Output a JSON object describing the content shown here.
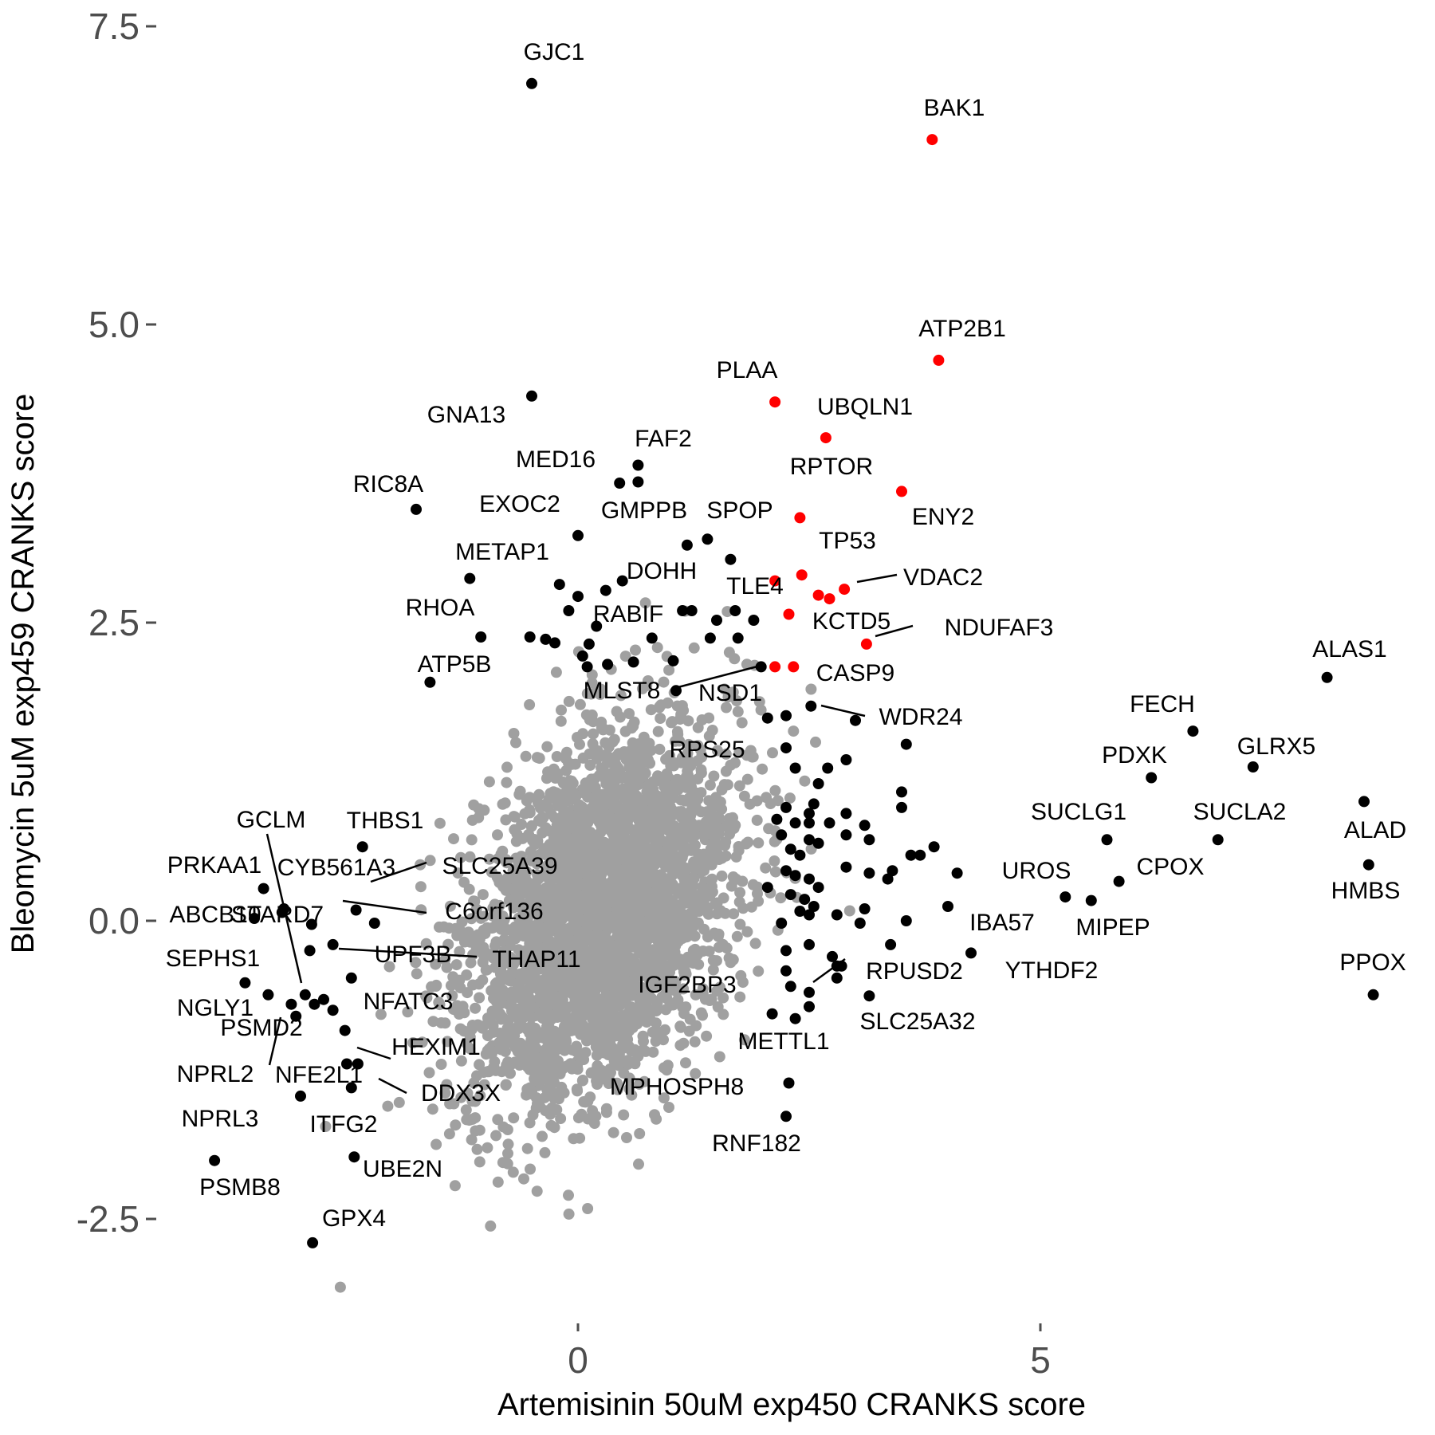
{
  "chart_data": {
    "type": "scatter",
    "title": "",
    "xlabel": "Artemisinin 50uM exp450 CRANKS score",
    "ylabel": "Bleomycin 5uM exp459 CRANKS score",
    "xlim": [
      -4.5,
      9.3
    ],
    "ylim": [
      -3.35,
      7.75
    ],
    "x_ticks": [
      0,
      5
    ],
    "x_tick_labels": [
      "0",
      "5"
    ],
    "y_ticks": [
      -2.5,
      0,
      2.5,
      5,
      7.5
    ],
    "y_tick_labels": [
      "-2.5",
      "0.0",
      "2.5",
      "5.0",
      "7.5"
    ],
    "grid": false,
    "legend": "none",
    "colors": {
      "background": "#ffffff",
      "bulk": "#a0a0a0",
      "labeled": "#000000",
      "highlight": "#ff0000"
    },
    "series": [
      {
        "color": "#000000",
        "points": [
          {
            "label": "GJC1",
            "x": -0.5,
            "y": 7.02
          },
          {
            "label": "GNA13",
            "x": -0.5,
            "y": 4.4
          },
          {
            "label": "RIC8A",
            "x": -1.75,
            "y": 3.45
          },
          {
            "label": "MED16",
            "x": 0.45,
            "y": 3.67
          },
          {
            "label": "FAF2",
            "x": 0.65,
            "y": 3.82
          },
          {
            "label": "",
            "x": 0.65,
            "y": 3.68
          },
          {
            "label": "EXOC2",
            "x": 0.0,
            "y": 3.23
          },
          {
            "label": "GMPPB",
            "x": 1.18,
            "y": 3.15
          },
          {
            "label": "SPOP",
            "x": 1.4,
            "y": 3.2
          },
          {
            "label": "",
            "x": 1.65,
            "y": 3.03
          },
          {
            "label": "METAP1",
            "x": -1.17,
            "y": 2.87
          },
          {
            "label": "DOHH",
            "x": 0.48,
            "y": 2.85
          },
          {
            "label": "",
            "x": -0.2,
            "y": 2.82
          },
          {
            "label": "",
            "x": 0.0,
            "y": 2.72
          },
          {
            "label": "",
            "x": 0.3,
            "y": 2.77
          },
          {
            "label": "",
            "x": -0.1,
            "y": 2.6
          },
          {
            "label": "RABIF",
            "x": 1.13,
            "y": 2.6
          },
          {
            "label": "",
            "x": 1.23,
            "y": 2.6
          },
          {
            "label": "",
            "x": 1.7,
            "y": 2.6
          },
          {
            "label": "",
            "x": 1.9,
            "y": 2.52
          },
          {
            "label": "",
            "x": 1.5,
            "y": 2.52
          },
          {
            "label": "",
            "x": 0.2,
            "y": 2.47
          },
          {
            "label": "",
            "x": 1.43,
            "y": 2.37
          },
          {
            "label": "",
            "x": 1.73,
            "y": 2.37
          },
          {
            "label": "RHOA",
            "x": -1.05,
            "y": 2.38
          },
          {
            "label": "",
            "x": -0.52,
            "y": 2.38
          },
          {
            "label": "",
            "x": -0.35,
            "y": 2.36
          },
          {
            "label": "",
            "x": -0.25,
            "y": 2.33
          },
          {
            "label": "",
            "x": 0.12,
            "y": 2.32
          },
          {
            "label": "",
            "x": 0.8,
            "y": 2.37
          },
          {
            "label": "",
            "x": 0.05,
            "y": 2.22
          },
          {
            "label": "",
            "x": 0.32,
            "y": 2.15
          },
          {
            "label": "",
            "x": 0.6,
            "y": 2.17
          },
          {
            "label": "",
            "x": 1.03,
            "y": 2.18
          },
          {
            "label": "MLST8",
            "x": 0.1,
            "y": 2.13
          },
          {
            "label": "",
            "x": 1.06,
            "y": 1.93
          },
          {
            "label": "NSD1",
            "x": 1.98,
            "y": 2.13
          },
          {
            "label": "",
            "x": 2.05,
            "y": 1.7
          },
          {
            "label": "",
            "x": 2.25,
            "y": 1.72
          },
          {
            "label": "WDR24",
            "x": 2.52,
            "y": 1.8
          },
          {
            "label": "",
            "x": 3.0,
            "y": 1.68
          },
          {
            "label": "",
            "x": 3.55,
            "y": 1.48
          },
          {
            "label": "RPS25",
            "x": 2.25,
            "y": 1.45
          },
          {
            "label": "",
            "x": 2.35,
            "y": 1.28
          },
          {
            "label": "",
            "x": 2.7,
            "y": 1.28
          },
          {
            "label": "",
            "x": 2.9,
            "y": 1.35
          },
          {
            "label": "",
            "x": 2.6,
            "y": 1.15
          },
          {
            "label": "",
            "x": 3.5,
            "y": 1.08
          },
          {
            "label": "",
            "x": 2.55,
            "y": 0.98
          },
          {
            "label": "",
            "x": 2.25,
            "y": 0.95
          },
          {
            "label": "",
            "x": 2.35,
            "y": 0.82
          },
          {
            "label": "",
            "x": 2.5,
            "y": 0.9
          },
          {
            "label": "",
            "x": 2.72,
            "y": 0.82
          },
          {
            "label": "",
            "x": 2.5,
            "y": 0.82
          },
          {
            "label": "",
            "x": 2.15,
            "y": 0.85
          },
          {
            "label": "",
            "x": 2.9,
            "y": 0.9
          },
          {
            "label": "",
            "x": 3.5,
            "y": 0.95
          },
          {
            "label": "",
            "x": 3.1,
            "y": 0.8
          },
          {
            "label": "",
            "x": 2.2,
            "y": 0.72
          },
          {
            "label": "",
            "x": 2.5,
            "y": 0.68
          },
          {
            "label": "",
            "x": 2.9,
            "y": 0.72
          },
          {
            "label": "",
            "x": 3.15,
            "y": 0.68
          },
          {
            "label": "",
            "x": 2.6,
            "y": 0.65
          },
          {
            "label": "",
            "x": 2.3,
            "y": 0.6
          },
          {
            "label": "",
            "x": 2.4,
            "y": 0.55
          },
          {
            "label": "",
            "x": 3.85,
            "y": 0.62
          },
          {
            "label": "",
            "x": 3.6,
            "y": 0.55
          },
          {
            "label": "",
            "x": 3.7,
            "y": 0.55
          },
          {
            "label": "",
            "x": 2.25,
            "y": 0.42
          },
          {
            "label": "",
            "x": 2.35,
            "y": 0.38
          },
          {
            "label": "",
            "x": 2.9,
            "y": 0.45
          },
          {
            "label": "",
            "x": 3.15,
            "y": 0.4
          },
          {
            "label": "",
            "x": 3.4,
            "y": 0.42
          },
          {
            "label": "",
            "x": 3.35,
            "y": 0.35
          },
          {
            "label": "",
            "x": 4.1,
            "y": 0.4
          },
          {
            "label": "",
            "x": 2.5,
            "y": 0.35
          },
          {
            "label": "",
            "x": 2.6,
            "y": 0.28
          },
          {
            "label": "",
            "x": 2.05,
            "y": 0.28
          },
          {
            "label": "",
            "x": 2.3,
            "y": 0.22
          },
          {
            "label": "",
            "x": 2.45,
            "y": 0.18
          },
          {
            "label": "",
            "x": 2.55,
            "y": 0.12
          },
          {
            "label": "",
            "x": 2.4,
            "y": 0.08
          },
          {
            "label": "",
            "x": 2.5,
            "y": 0.05
          },
          {
            "label": "",
            "x": 2.8,
            "y": 0.05
          },
          {
            "label": "",
            "x": 3.1,
            "y": 0.1
          },
          {
            "label": "",
            "x": 4.0,
            "y": 0.12
          },
          {
            "label": "",
            "x": 2.2,
            "y": -0.02
          },
          {
            "label": "",
            "x": 3.05,
            "y": -0.02
          },
          {
            "label": "",
            "x": 3.55,
            "y": 0.0
          },
          {
            "label": "",
            "x": 2.25,
            "y": -0.25
          },
          {
            "label": "",
            "x": 2.5,
            "y": -0.2
          },
          {
            "label": "",
            "x": 3.38,
            "y": -0.2
          },
          {
            "label": "",
            "x": 2.25,
            "y": -0.42
          },
          {
            "label": "",
            "x": 2.75,
            "y": -0.3
          },
          {
            "label": "",
            "x": 2.85,
            "y": -0.38
          },
          {
            "label": "",
            "x": 2.3,
            "y": -0.55
          },
          {
            "label": "",
            "x": 2.8,
            "y": -0.48
          },
          {
            "label": "",
            "x": 2.5,
            "y": -0.6
          },
          {
            "label": "IBA57",
            "x": 4.25,
            "y": -0.27
          },
          {
            "label": "RPUSD2",
            "x": 2.8,
            "y": -0.38
          },
          {
            "label": "SLC25A32",
            "x": 3.15,
            "y": -0.63
          },
          {
            "label": "IGF2BP3",
            "x": 2.5,
            "y": -0.72
          },
          {
            "label": "",
            "x": 2.1,
            "y": -0.78
          },
          {
            "label": "METTL1",
            "x": 2.35,
            "y": -0.82
          },
          {
            "label": "MPHOSPH8",
            "x": 2.28,
            "y": -1.36
          },
          {
            "label": "RNF182",
            "x": 2.25,
            "y": -1.64
          },
          {
            "label": "ALAS1",
            "x": 8.1,
            "y": 2.04
          },
          {
            "label": "FECH",
            "x": 6.65,
            "y": 1.59
          },
          {
            "label": "GLRX5",
            "x": 7.3,
            "y": 1.29
          },
          {
            "label": "PDXK",
            "x": 6.2,
            "y": 1.2
          },
          {
            "label": "",
            "x": 8.5,
            "y": 1.0
          },
          {
            "label": "SUCLG1",
            "x": 5.72,
            "y": 0.68
          },
          {
            "label": "SUCLA2",
            "x": 6.92,
            "y": 0.68
          },
          {
            "label": "HMBS",
            "x": 8.55,
            "y": 0.47
          },
          {
            "label": "CPOX",
            "x": 5.85,
            "y": 0.33
          },
          {
            "label": "UROS",
            "x": 5.27,
            "y": 0.2
          },
          {
            "label": "MIPEP",
            "x": 5.55,
            "y": 0.17
          },
          {
            "label": "PPOX",
            "x": 8.6,
            "y": -0.62
          },
          {
            "label": "PRKAA1",
            "x": -3.4,
            "y": 0.27
          },
          {
            "label": "GCLM",
            "x": -3.2,
            "y": 0.07
          },
          {
            "label": "",
            "x": -3.18,
            "y": 0.1
          },
          {
            "label": "ABCB10",
            "x": -3.5,
            "y": 0.02
          },
          {
            "label": "STARD7",
            "x": -2.88,
            "y": -0.03
          },
          {
            "label": "CYB561A3",
            "x": -2.4,
            "y": 0.09
          },
          {
            "label": "SLC25A39",
            "x": -2.2,
            "y": -0.02
          },
          {
            "label": "C6orf136",
            "x": -2.65,
            "y": -0.2
          },
          {
            "label": "",
            "x": -2.9,
            "y": -0.25
          },
          {
            "label": "SEPHS1",
            "x": -3.6,
            "y": -0.52
          },
          {
            "label": "UPF3B",
            "x": -2.45,
            "y": -0.48
          },
          {
            "label": "NGLY1",
            "x": -3.35,
            "y": -0.62
          },
          {
            "label": "",
            "x": -2.95,
            "y": -0.62
          },
          {
            "label": "",
            "x": -3.1,
            "y": -0.7
          },
          {
            "label": "PSMD2",
            "x": -2.85,
            "y": -0.7
          },
          {
            "label": "",
            "x": -2.65,
            "y": -0.75
          },
          {
            "label": "NPRL2",
            "x": -3.05,
            "y": -0.8
          },
          {
            "label": "NFATC3",
            "x": -2.75,
            "y": -0.66
          },
          {
            "label": "HEXIM1",
            "x": -2.52,
            "y": -0.92
          },
          {
            "label": "DDX3X",
            "x": -2.38,
            "y": -1.2
          },
          {
            "label": "",
            "x": -2.5,
            "y": -1.2
          },
          {
            "label": "NFE2L1",
            "x": -2.45,
            "y": -1.4
          },
          {
            "label": "ITFG2",
            "x": -3.0,
            "y": -1.47
          },
          {
            "label": "PSMB8",
            "x": -3.93,
            "y": -2.01
          },
          {
            "label": "UBE2N",
            "x": -2.42,
            "y": -1.98
          },
          {
            "label": "GPX4",
            "x": -2.87,
            "y": -2.7
          },
          {
            "label": "THBS1",
            "x": -2.33,
            "y": 0.62
          },
          {
            "label": "ATP5B",
            "x": -1.6,
            "y": 2.0
          }
        ]
      },
      {
        "color": "#ff0000",
        "points": [
          {
            "label": "BAK1",
            "x": 3.83,
            "y": 6.55
          },
          {
            "label": "ATP2B1",
            "x": 3.9,
            "y": 4.7
          },
          {
            "label": "PLAA",
            "x": 2.13,
            "y": 4.35
          },
          {
            "label": "UBQLN1",
            "x": 2.68,
            "y": 4.05
          },
          {
            "label": "ENY2",
            "x": 3.5,
            "y": 3.6
          },
          {
            "label": "RPTOR",
            "x": 2.4,
            "y": 3.38
          },
          {
            "label": "TP53",
            "x": 2.42,
            "y": 2.9
          },
          {
            "label": "VDAC2",
            "x": 2.88,
            "y": 2.78
          },
          {
            "label": "TLE4",
            "x": 2.13,
            "y": 2.85
          },
          {
            "label": "",
            "x": 2.6,
            "y": 2.73
          },
          {
            "label": "",
            "x": 2.72,
            "y": 2.7
          },
          {
            "label": "KCTD5",
            "x": 2.28,
            "y": 2.57
          },
          {
            "label": "NDUFAF3",
            "x": 3.12,
            "y": 2.32
          },
          {
            "label": "CASP9",
            "x": 2.33,
            "y": 2.13
          },
          {
            "label": "",
            "x": 2.13,
            "y": 2.13
          }
        ]
      }
    ],
    "annotations": [
      "GJC1",
      "BAK1",
      "ATP2B1",
      "PLAA",
      "UBQLN1",
      "GNA13",
      "FAF2",
      "MED16",
      "RPTOR",
      "RIC8A",
      "EXOC2",
      "GMPPB",
      "SPOP",
      "ENY2",
      "TP53",
      "METAP1",
      "DOHH",
      "VDAC2",
      "TLE4",
      "RHOA",
      "RABIF",
      "KCTD5",
      "NDUFAF3",
      "ATP5B",
      "CASP9",
      "MLST8",
      "NSD1",
      "WDR24",
      "RPS25",
      "ALAS1",
      "FECH",
      "PDXK",
      "GLRX5",
      "SUCLG1",
      "SUCLA2",
      "ALAD",
      "UROS",
      "CPOX",
      "HMBS",
      "MIPEP",
      "IBA57",
      "YTHDF2",
      "PPOX",
      "RPUSD2",
      "SLC25A32",
      "IGF2BP3",
      "METTL1",
      "MPHOSPH8",
      "RNF182",
      "GCLM",
      "THBS1",
      "PRKAA1",
      "CYB561A3",
      "SLC25A39",
      "ABCB10",
      "STARD7",
      "C6orf136",
      "SEPHS1",
      "UPF3B",
      "THAP11",
      "NGLY1",
      "NFATC3",
      "PSMD2",
      "HEXIM1",
      "NPRL2",
      "NFE2L1",
      "DDX3X",
      "NPRL3",
      "ITFG2",
      "PSMB8",
      "UBE2N",
      "GPX4"
    ]
  }
}
